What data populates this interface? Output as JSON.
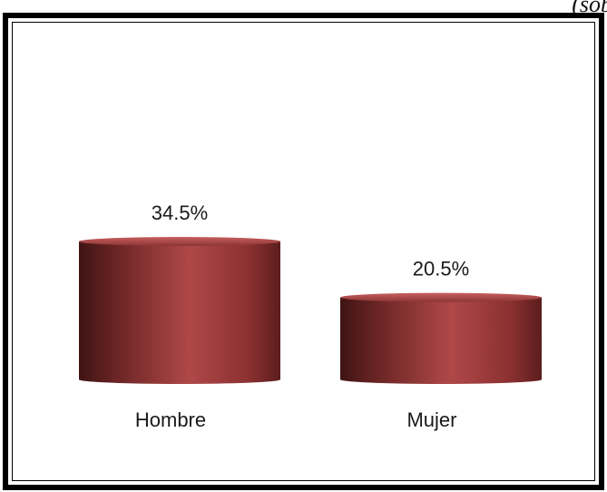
{
  "corner_text": "(sob",
  "chart_data": {
    "type": "bar",
    "categories": [
      "Hombre",
      "Mujer"
    ],
    "values": [
      34.5,
      20.5
    ],
    "value_labels": [
      "34.5%",
      "20.5%"
    ],
    "ylim": [
      0,
      34.5
    ],
    "bar_color": "#9e3a3a",
    "title": "",
    "xlabel": "",
    "ylabel": ""
  }
}
